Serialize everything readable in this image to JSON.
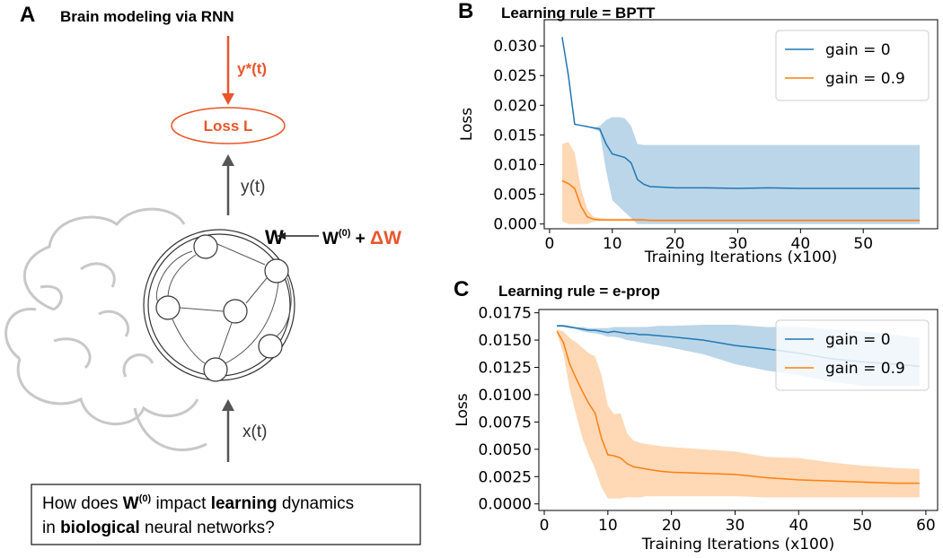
{
  "diagram": {
    "panel_label": "A",
    "title": "Brain modeling via RNN",
    "target": "y*(t)",
    "loss": "Loss L",
    "output": "y(t)",
    "weight": "W",
    "update": [
      "W",
      "(0)",
      " + ",
      "ΔW"
    ],
    "input": "x(t)",
    "question": [
      [
        "How does ",
        "W",
        "(0)",
        " impact ",
        "learning",
        " dynamics"
      ],
      [
        "in ",
        "biological",
        " neural networks?"
      ]
    ]
  },
  "chart_data": [
    {
      "type": "line",
      "panel_label": "B",
      "title": "Learning rule = BPTT",
      "xlabel": "Training Iterations (x100)",
      "ylabel": "Loss",
      "x": [
        2,
        3,
        4,
        5,
        6,
        7,
        8,
        9,
        10,
        11,
        12,
        13,
        14,
        15,
        16,
        18,
        20,
        25,
        30,
        35,
        40,
        45,
        50,
        55,
        59
      ],
      "xlim": [
        -0.85,
        61.85
      ],
      "xticks": [
        0,
        10,
        20,
        30,
        40,
        50
      ],
      "ylim": [
        -0.0008,
        0.0344
      ],
      "yticks": [
        {
          "value": 0,
          "label": "0.000"
        },
        {
          "value": 0.005,
          "label": "0.005"
        },
        {
          "value": 0.01,
          "label": "0.010"
        },
        {
          "value": 0.015,
          "label": "0.015"
        },
        {
          "value": 0.02,
          "label": "0.020"
        },
        {
          "value": 0.025,
          "label": "0.025"
        },
        {
          "value": 0.03,
          "label": "0.030"
        }
      ],
      "legend": "upper right",
      "series": [
        {
          "name": "gain = 0",
          "color": "#1f77b4",
          "values": [
            0.0315,
            0.025,
            0.0168,
            0.0166,
            0.0164,
            0.0162,
            0.016,
            0.0135,
            0.0118,
            0.0115,
            0.0112,
            0.0103,
            0.0075,
            0.0067,
            0.0063,
            0.0062,
            0.0061,
            0.0061,
            0.006,
            0.0061,
            0.006,
            0.006,
            0.006,
            0.006,
            0.006
          ],
          "upper": [
            0.0315,
            0.025,
            0.0168,
            0.0166,
            0.0164,
            0.0162,
            0.0165,
            0.0175,
            0.018,
            0.018,
            0.0178,
            0.0165,
            0.0135,
            0.0133,
            0.0133,
            0.0133,
            0.0133,
            0.0133,
            0.0133,
            0.0133,
            0.0133,
            0.0133,
            0.0133,
            0.0133,
            0.0133
          ],
          "lower": [
            0.0315,
            0.025,
            0.0168,
            0.0166,
            0.0164,
            0.016,
            0.0155,
            0.009,
            0.004,
            0.003,
            0.002,
            0.001,
            0,
            0,
            0,
            0,
            0,
            0,
            0,
            0,
            0,
            0,
            0,
            0,
            0
          ]
        },
        {
          "name": "gain = 0.9",
          "color": "#ff7f0e",
          "values": [
            0.0073,
            0.0068,
            0.006,
            0.003,
            0.0012,
            0.0008,
            0.0007,
            0.0007,
            0.0007,
            0.0007,
            0.0007,
            0.0007,
            0.0007,
            0.0007,
            0.0006,
            0.0006,
            0.0006,
            0.0006,
            0.0006,
            0.0006,
            0.0006,
            0.0006,
            0.0006,
            0.0006,
            0.0006
          ],
          "upper": [
            0.0135,
            0.0138,
            0.012,
            0.006,
            0.0025,
            0.0012,
            0.001,
            0.0009,
            0.0009,
            0.0009,
            0.0009,
            0.0009,
            0.0009,
            0.0009,
            0.0008,
            0.0008,
            0.0008,
            0.0008,
            0.0008,
            0.0008,
            0.0008,
            0.0008,
            0.0008,
            0.0008,
            0.0008
          ],
          "lower": [
            0.0005,
            0,
            0,
            0,
            0,
            0.0004,
            0.0005,
            0.0005,
            0.0005,
            0.0005,
            0.0005,
            0.0005,
            0.0005,
            0.0005,
            0.0005,
            0.0005,
            0.0005,
            0.0005,
            0.0005,
            0.0005,
            0.0005,
            0.0005,
            0.0005,
            0.0005,
            0.0005
          ]
        }
      ]
    },
    {
      "type": "line",
      "panel_label": "C",
      "title": "Learning rule = e-prop",
      "xlabel": "Training Iterations (x100)",
      "ylabel": "Loss",
      "x": [
        2,
        3,
        4,
        5,
        6,
        7,
        8,
        9,
        10,
        11,
        12,
        13,
        14,
        15,
        16,
        18,
        20,
        25,
        30,
        35,
        40,
        45,
        50,
        55,
        59
      ],
      "xlim": [
        -0.85,
        61.85
      ],
      "xticks": [
        0,
        10,
        20,
        30,
        40,
        50,
        60
      ],
      "ylim": [
        -0.0006,
        0.0178
      ],
      "yticks": [
        {
          "value": 0,
          "label": "0.0000"
        },
        {
          "value": 0.0025,
          "label": "0.0025"
        },
        {
          "value": 0.005,
          "label": "0.0050"
        },
        {
          "value": 0.0075,
          "label": "0.0075"
        },
        {
          "value": 0.01,
          "label": "0.0100"
        },
        {
          "value": 0.0125,
          "label": "0.0125"
        },
        {
          "value": 0.015,
          "label": "0.0150"
        },
        {
          "value": 0.0175,
          "label": "0.0175"
        }
      ],
      "legend": "upper right",
      "series": [
        {
          "name": "gain = 0",
          "color": "#1f77b4",
          "values": [
            0.0163,
            0.0163,
            0.0162,
            0.0161,
            0.016,
            0.0159,
            0.0159,
            0.0158,
            0.0157,
            0.0158,
            0.0157,
            0.0156,
            0.0156,
            0.0155,
            0.0155,
            0.0154,
            0.0153,
            0.015,
            0.0145,
            0.0142,
            0.0138,
            0.0133,
            0.013,
            0.0128,
            0.0126
          ],
          "upper": [
            0.0164,
            0.0164,
            0.0163,
            0.0162,
            0.0162,
            0.0161,
            0.0161,
            0.0161,
            0.0161,
            0.0162,
            0.0162,
            0.0162,
            0.0162,
            0.0162,
            0.0162,
            0.0163,
            0.0163,
            0.0164,
            0.0164,
            0.0162,
            0.0162,
            0.016,
            0.0158,
            0.0155,
            0.0152
          ],
          "lower": [
            0.0162,
            0.0162,
            0.0161,
            0.016,
            0.0158,
            0.0157,
            0.0156,
            0.0155,
            0.0153,
            0.0153,
            0.0152,
            0.015,
            0.0149,
            0.0148,
            0.0147,
            0.0145,
            0.0143,
            0.0137,
            0.0128,
            0.0122,
            0.0118,
            0.0112,
            0.0108,
            0.0108,
            0.0108
          ]
        },
        {
          "name": "gain = 0.9",
          "color": "#ff7f0e",
          "values": [
            0.0158,
            0.0148,
            0.0128,
            0.0115,
            0.0103,
            0.0092,
            0.0083,
            0.006,
            0.0045,
            0.0044,
            0.0042,
            0.0037,
            0.0034,
            0.0033,
            0.0032,
            0.003,
            0.0029,
            0.0028,
            0.0027,
            0.0024,
            0.0022,
            0.0021,
            0.002,
            0.0019,
            0.0019
          ],
          "upper": [
            0.016,
            0.0158,
            0.0152,
            0.0148,
            0.0143,
            0.0138,
            0.0135,
            0.0118,
            0.009,
            0.0082,
            0.0083,
            0.0065,
            0.0058,
            0.0056,
            0.0055,
            0.0053,
            0.0052,
            0.005,
            0.0048,
            0.0043,
            0.0042,
            0.0038,
            0.0035,
            0.0033,
            0.0032
          ],
          "lower": [
            0.0156,
            0.0138,
            0.0105,
            0.0082,
            0.006,
            0.0045,
            0.0032,
            0.0015,
            0.0005,
            0.0005,
            0.0005,
            0.0006,
            0.0006,
            0.0006,
            0.0007,
            0.0007,
            0.0007,
            0.0007,
            0.0007,
            0.0006,
            0.0006,
            0.0006,
            0.0006,
            0.0006,
            0.0006
          ]
        }
      ]
    }
  ]
}
